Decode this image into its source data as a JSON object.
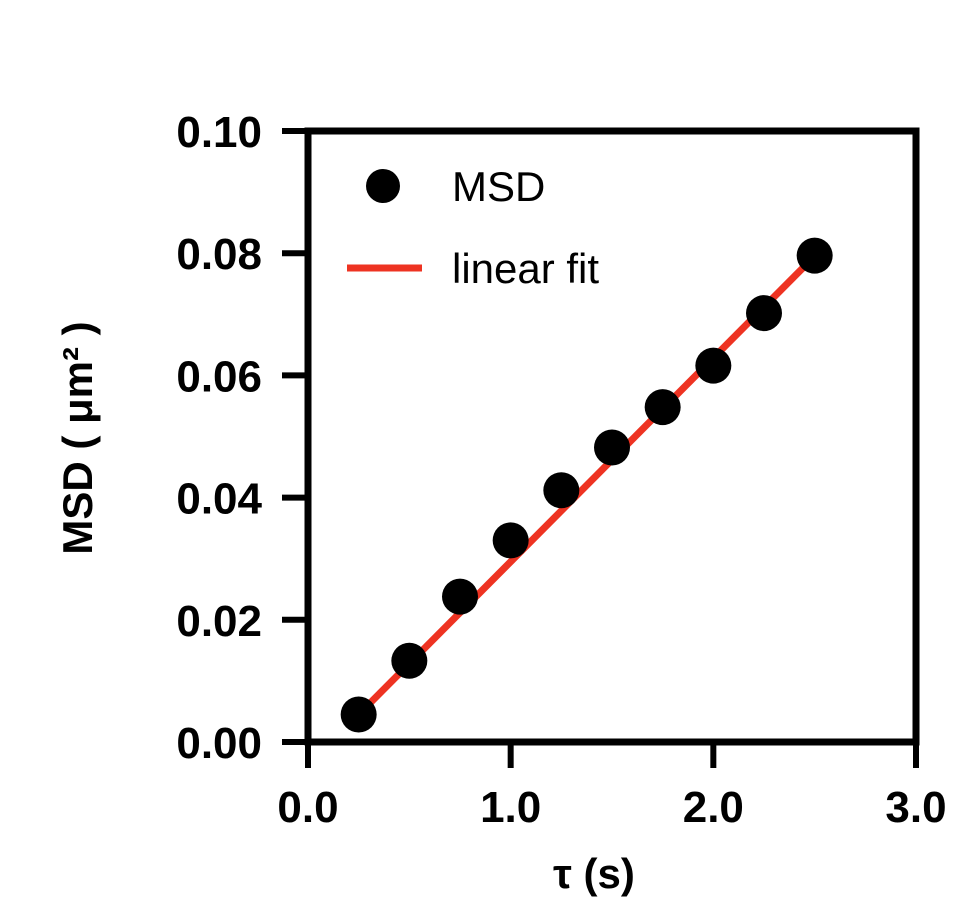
{
  "chart_data": {
    "type": "scatter",
    "xlabel": "τ (s)",
    "ylabel": "MSD ( μm² )",
    "xlim": [
      0,
      3
    ],
    "ylim": [
      0,
      0.1
    ],
    "x_ticks": [
      0,
      1,
      2,
      3
    ],
    "x_tick_labels": [
      "0.0",
      "1.0",
      "2.0",
      "3.0"
    ],
    "y_ticks": [
      0,
      0.02,
      0.04,
      0.06,
      0.08,
      0.1
    ],
    "y_tick_labels": [
      "0.00",
      "0.02",
      "0.04",
      "0.06",
      "0.08",
      "0.10"
    ],
    "legend_position": "top-left",
    "series": [
      {
        "name": "MSD",
        "kind": "points",
        "color": "#000000",
        "x": [
          0.25,
          0.5,
          0.75,
          1.0,
          1.25,
          1.5,
          1.75,
          2.0,
          2.25,
          2.5
        ],
        "y": [
          0.0045,
          0.0133,
          0.0238,
          0.033,
          0.0412,
          0.0482,
          0.0548,
          0.0616,
          0.0702,
          0.0796
        ]
      },
      {
        "name": "linear fit",
        "kind": "line",
        "color": "#ee3322",
        "x": [
          0.22,
          2.52
        ],
        "y": [
          0.0035,
          0.0802
        ]
      }
    ]
  }
}
